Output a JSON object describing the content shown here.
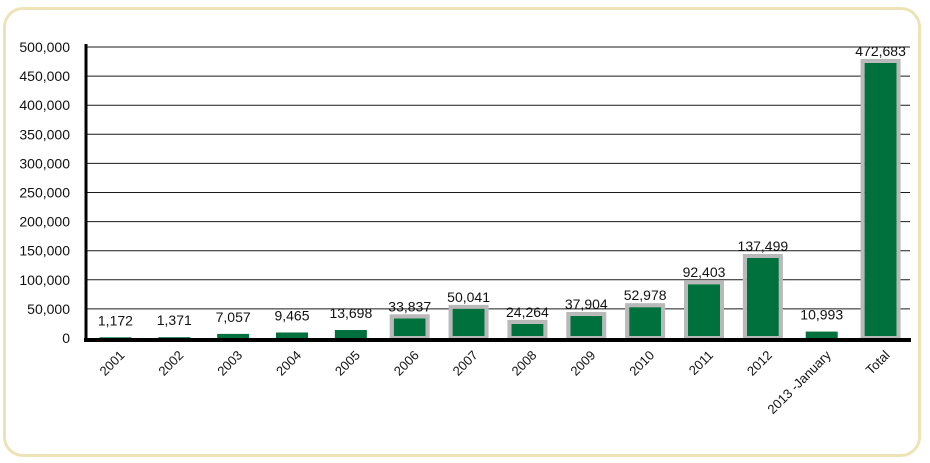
{
  "chart_data": {
    "type": "bar",
    "title": "",
    "xlabel": "",
    "ylabel": "",
    "ylim": [
      0,
      500000
    ],
    "yticks": [
      0,
      50000,
      100000,
      150000,
      200000,
      250000,
      300000,
      350000,
      400000,
      450000,
      500000
    ],
    "ytick_labels": [
      "0",
      "50,000",
      "100,000",
      "150,000",
      "200,000",
      "250,000",
      "300,000",
      "350,000",
      "400,000",
      "450,000",
      "500,000"
    ],
    "grid": "horizontal",
    "categories": [
      "2001",
      "2002",
      "2003",
      "2004",
      "2005",
      "2006",
      "2007",
      "2008",
      "2009",
      "2010",
      "2011",
      "2012",
      "2013 -January",
      "Total"
    ],
    "values": [
      1172,
      1371,
      7057,
      9465,
      13698,
      33837,
      50041,
      24264,
      37904,
      52978,
      92403,
      137499,
      10993,
      472683
    ],
    "value_labels": [
      "1,172",
      "1,371",
      "7,057",
      "9,465",
      "13,698",
      "33,837",
      "50,041",
      "24,264",
      "37,904",
      "52,978",
      "92,403",
      "137,499",
      "10,993",
      "472,683"
    ],
    "colors": {
      "bar": "#00703c",
      "bar_outline": "#b9b9b9",
      "axis": "#000000",
      "grid": "#1a1a1a",
      "frame": "#ede3b6"
    }
  }
}
